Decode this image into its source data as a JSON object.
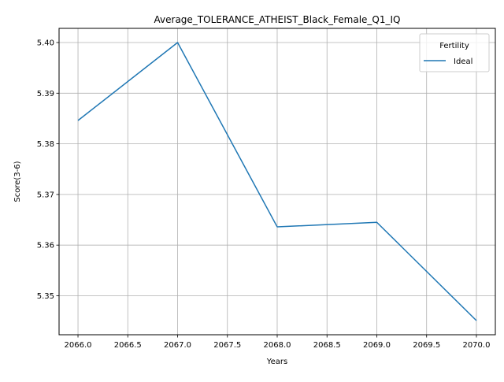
{
  "chart_data": {
    "type": "line",
    "title": "Average_TOLERANCE_ATHEIST_Black_Female_Q1_IQ",
    "xlabel": "Years",
    "ylabel": "Score(3-6)",
    "x": [
      2066,
      2067,
      2068,
      2069,
      2070
    ],
    "xlim": [
      2065.81,
      2070.19
    ],
    "ylim": [
      5.3423,
      5.4028
    ],
    "x_ticks": [
      2066.0,
      2066.5,
      2067.0,
      2067.5,
      2068.0,
      2068.5,
      2069.0,
      2069.5,
      2070.0
    ],
    "x_tick_labels": [
      "2066.0",
      "2066.5",
      "2067.0",
      "2067.5",
      "2068.0",
      "2068.5",
      "2069.0",
      "2069.5",
      "2070.0"
    ],
    "y_ticks": [
      5.35,
      5.36,
      5.37,
      5.38,
      5.39,
      5.4
    ],
    "y_tick_labels": [
      "5.35",
      "5.36",
      "5.37",
      "5.38",
      "5.39",
      "5.40"
    ],
    "grid": true,
    "legend": {
      "title": "Fertility",
      "placement": "top-right"
    },
    "series": [
      {
        "name": "Ideal",
        "color": "#1f77b4",
        "values": [
          5.3846,
          5.4,
          5.3636,
          5.3645,
          5.3451
        ]
      }
    ]
  }
}
